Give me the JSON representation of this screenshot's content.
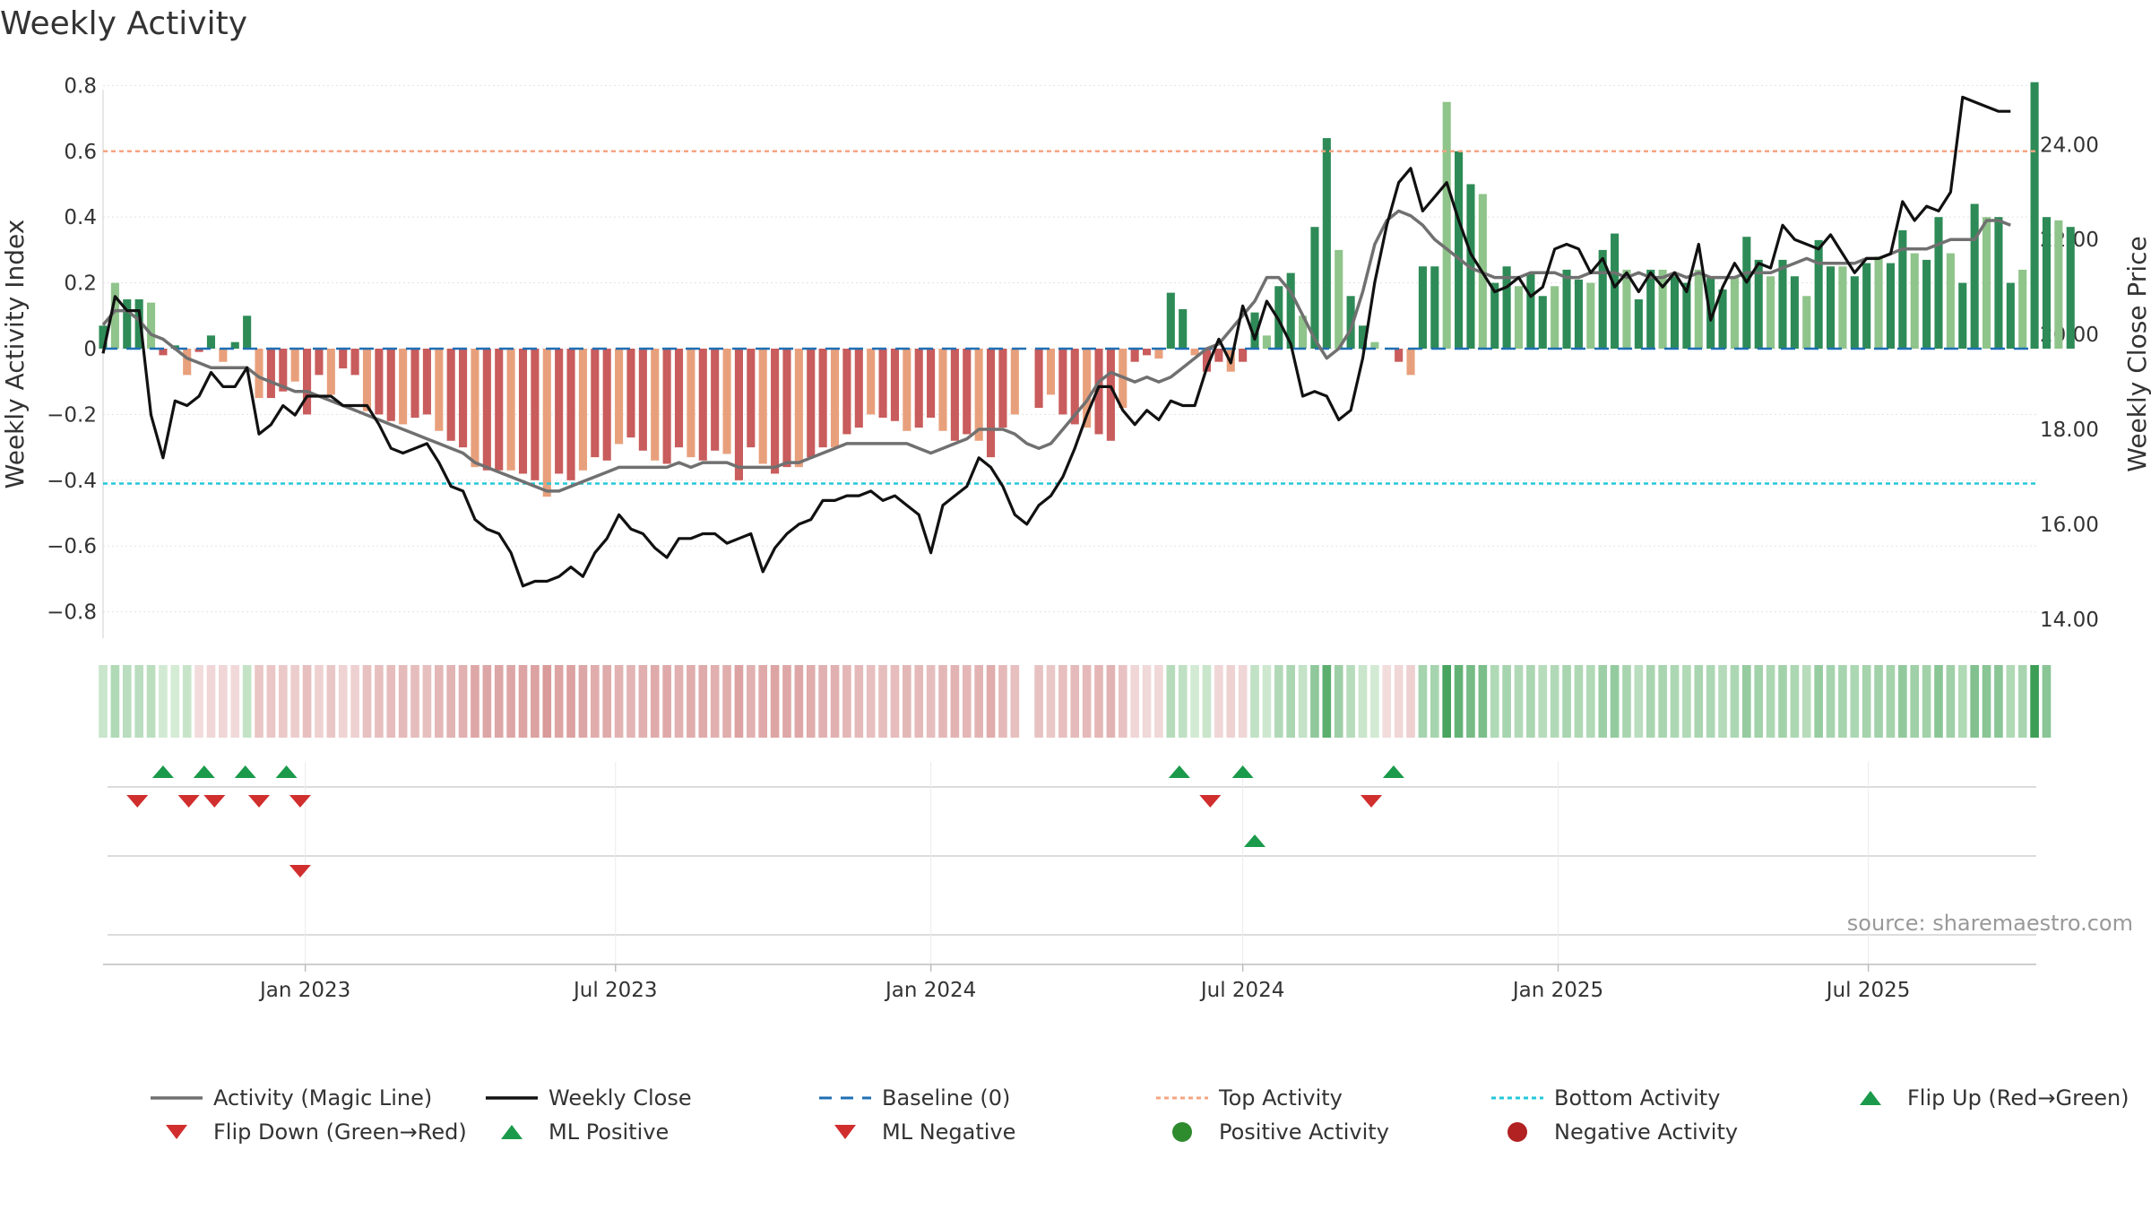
{
  "title": "Weekly Activity",
  "source": "source: sharemaestro.com",
  "colors": {
    "strong_pos": "#2e8b57",
    "light_pos": "#8fc48a",
    "strong_neg": "#c95c5c",
    "light_neg": "#e8a07c",
    "magic": "#707070",
    "close": "#111111",
    "baseline": "#1f6fb4",
    "top": "#f4a582",
    "bottom": "#22c8d8",
    "flip_up": "#1a9a4a",
    "flip_down": "#d12e2e",
    "pos_dot": "#2e8b2e",
    "neg_dot": "#b22222"
  },
  "chart_data": {
    "type": "bar+line",
    "title": "Weekly Activity",
    "ylabel": "Weekly Activity Index",
    "y2label": "Weekly Close Price",
    "ylim": [
      -0.88,
      0.88
    ],
    "y2lim": [
      13.6,
      25.8
    ],
    "xlim": [
      "2022-09-05",
      "2025-10-07"
    ],
    "yticks": [
      {
        "v": 0.8,
        "label": "0.8"
      },
      {
        "v": 0.6,
        "label": "0.6"
      },
      {
        "v": 0.4,
        "label": "0.4"
      },
      {
        "v": 0.2,
        "label": "0.2"
      },
      {
        "v": 0,
        "label": "0"
      },
      {
        "v": -0.2,
        "label": "−0.2"
      },
      {
        "v": -0.4,
        "label": "−0.4"
      },
      {
        "v": -0.6,
        "label": "−0.6"
      },
      {
        "v": -0.8,
        "label": "−0.8"
      }
    ],
    "y2ticks": [
      {
        "v": 24,
        "label": "24.00"
      },
      {
        "v": 22,
        "label": "22.00"
      },
      {
        "v": 20,
        "label": "20.00"
      },
      {
        "v": 18,
        "label": "18.00"
      },
      {
        "v": 16,
        "label": "16.00"
      },
      {
        "v": 14,
        "label": "14.00"
      }
    ],
    "xticks": [
      {
        "date": "2023-01-01",
        "label": "Jan 2023"
      },
      {
        "date": "2023-07-01",
        "label": "Jul 2023"
      },
      {
        "date": "2024-01-01",
        "label": "Jan 2024"
      },
      {
        "date": "2024-07-01",
        "label": "Jul 2024"
      },
      {
        "date": "2025-01-01",
        "label": "Jan 2025"
      },
      {
        "date": "2025-07-01",
        "label": "Jul 2025"
      }
    ],
    "top_activity": 0.6,
    "bottom_activity": -0.41,
    "start_date": "2022-09-05",
    "week_step_days": 7,
    "activity": [
      0.07,
      0.2,
      0.15,
      0.15,
      0.14,
      -0.02,
      0.01,
      -0.08,
      -0.01,
      0.04,
      -0.04,
      0.02,
      0.1,
      -0.15,
      -0.15,
      -0.13,
      -0.1,
      -0.2,
      -0.08,
      -0.14,
      -0.06,
      -0.08,
      -0.19,
      -0.2,
      -0.22,
      -0.23,
      -0.21,
      -0.2,
      -0.25,
      -0.28,
      -0.3,
      -0.36,
      -0.37,
      -0.37,
      -0.37,
      -0.38,
      -0.4,
      -0.45,
      -0.38,
      -0.4,
      -0.37,
      -0.33,
      -0.34,
      -0.29,
      -0.27,
      -0.31,
      -0.34,
      -0.35,
      -0.3,
      -0.33,
      -0.34,
      -0.31,
      -0.32,
      -0.4,
      -0.3,
      -0.35,
      -0.38,
      -0.36,
      -0.36,
      -0.33,
      -0.3,
      -0.3,
      -0.26,
      -0.24,
      -0.2,
      -0.21,
      -0.22,
      -0.25,
      -0.24,
      -0.21,
      -0.25,
      -0.28,
      -0.26,
      -0.28,
      -0.33,
      -0.24,
      -0.2,
      0,
      -0.18,
      -0.14,
      -0.2,
      -0.23,
      -0.24,
      -0.26,
      -0.28,
      -0.18,
      -0.04,
      -0.02,
      -0.03,
      0.17,
      0.12,
      -0.02,
      -0.07,
      -0.04,
      -0.07,
      -0.04,
      0.11,
      0.04,
      0.19,
      0.23,
      0.1,
      0.37,
      0.64,
      0.3,
      0.16,
      0.07,
      0.02,
      0,
      -0.04,
      -0.08,
      0.25,
      0.25,
      0.75,
      0.6,
      0.5,
      0.47,
      0.2,
      0.25,
      0.19,
      0.23,
      0.16,
      0.19,
      0.24,
      0.21,
      0.2,
      0.3,
      0.35,
      0.24,
      0.15,
      0.24,
      0.24,
      0.22,
      0.2,
      0.24,
      0.22,
      0.18,
      0.22,
      0.34,
      0.27,
      0.22,
      0.27,
      0.22,
      0.16,
      0.33,
      0.25,
      0.25,
      0.22,
      0.26,
      0.28,
      0.26,
      0.36,
      0.29,
      0.27,
      0.4,
      0.29,
      0.2,
      0.44,
      0.4,
      0.4,
      0.2,
      0.24,
      0.81,
      0.4,
      0.39,
      0.37
    ],
    "weekly_close": [
      19.6,
      20.8,
      20.5,
      20.5,
      18.3,
      17.4,
      18.6,
      18.5,
      18.7,
      19.2,
      18.9,
      18.9,
      19.3,
      17.9,
      18.1,
      18.5,
      18.3,
      18.7,
      18.7,
      18.7,
      18.5,
      18.5,
      18.5,
      18.1,
      17.6,
      17.5,
      17.6,
      17.7,
      17.3,
      16.8,
      16.7,
      16.1,
      15.9,
      15.8,
      15.4,
      14.7,
      14.8,
      14.8,
      14.9,
      15.1,
      14.9,
      15.4,
      15.7,
      16.2,
      15.9,
      15.8,
      15.5,
      15.3,
      15.7,
      15.7,
      15.8,
      15.8,
      15.6,
      15.7,
      15.8,
      15.0,
      15.5,
      15.8,
      16.0,
      16.1,
      16.5,
      16.5,
      16.6,
      16.6,
      16.7,
      16.5,
      16.6,
      16.4,
      16.2,
      15.4,
      16.4,
      16.6,
      16.8,
      17.4,
      17.2,
      16.8,
      16.2,
      16.0,
      16.4,
      16.6,
      17.0,
      17.6,
      18.3,
      18.9,
      18.9,
      18.4,
      18.1,
      18.4,
      18.2,
      18.6,
      18.5,
      18.5,
      19.3,
      19.9,
      19.4,
      20.6,
      19.9,
      20.7,
      20.3,
      19.8,
      18.7,
      18.8,
      18.7,
      18.2,
      18.4,
      19.5,
      21.1,
      22.3,
      23.2,
      23.5,
      22.6,
      22.9,
      23.2,
      22.4,
      21.7,
      21.3,
      20.9,
      21.0,
      21.2,
      20.8,
      21.0,
      21.8,
      21.9,
      21.8,
      21.3,
      21.6,
      21.0,
      21.3,
      20.9,
      21.3,
      21.0,
      21.3,
      20.9,
      21.9,
      20.3,
      21.0,
      21.5,
      21.1,
      21.5,
      21.4,
      22.3,
      22.0,
      21.9,
      21.8,
      22.1,
      21.7,
      21.3,
      21.6,
      21.6,
      21.7,
      22.8,
      22.4,
      22.7,
      22.6,
      23.0,
      25.0,
      24.9,
      24.8,
      24.7,
      24.7
    ],
    "magic_line": [
      20.2,
      20.5,
      20.5,
      20.3,
      20.0,
      19.9,
      19.7,
      19.5,
      19.4,
      19.3,
      19.3,
      19.3,
      19.3,
      19.1,
      19.0,
      18.9,
      18.8,
      18.8,
      18.7,
      18.6,
      18.5,
      18.4,
      18.3,
      18.2,
      18.1,
      18.0,
      17.9,
      17.8,
      17.7,
      17.6,
      17.5,
      17.3,
      17.2,
      17.1,
      17.0,
      16.9,
      16.8,
      16.7,
      16.7,
      16.8,
      16.9,
      17.0,
      17.1,
      17.2,
      17.2,
      17.2,
      17.2,
      17.2,
      17.3,
      17.2,
      17.3,
      17.3,
      17.3,
      17.2,
      17.2,
      17.2,
      17.2,
      17.3,
      17.3,
      17.4,
      17.5,
      17.6,
      17.7,
      17.7,
      17.7,
      17.7,
      17.7,
      17.7,
      17.6,
      17.5,
      17.6,
      17.7,
      17.8,
      18.0,
      18.0,
      18.0,
      17.9,
      17.7,
      17.6,
      17.7,
      18.0,
      18.3,
      18.6,
      19.0,
      19.2,
      19.1,
      19.0,
      19.1,
      19.0,
      19.1,
      19.3,
      19.5,
      19.7,
      19.8,
      20.1,
      20.4,
      20.7,
      21.2,
      21.2,
      20.9,
      20.4,
      19.9,
      19.5,
      19.7,
      20.1,
      20.9,
      21.9,
      22.4,
      22.6,
      22.5,
      22.3,
      22.0,
      21.8,
      21.6,
      21.4,
      21.3,
      21.2,
      21.2,
      21.2,
      21.3,
      21.3,
      21.3,
      21.2,
      21.2,
      21.3,
      21.3,
      21.3,
      21.2,
      21.3,
      21.2,
      21.2,
      21.3,
      21.2,
      21.3,
      21.2,
      21.2,
      21.2,
      21.3,
      21.3,
      21.3,
      21.4,
      21.5,
      21.6,
      21.5,
      21.5,
      21.5,
      21.5,
      21.6,
      21.6,
      21.7,
      21.8,
      21.8,
      21.8,
      21.9,
      22.0,
      22.0,
      22.0,
      22.4,
      22.4,
      22.3
    ],
    "heat_strip": [
      {
        "s": 0,
        "e": 7,
        "mode": "pos"
      },
      {
        "s": 8,
        "e": 11,
        "mode": "neg"
      },
      {
        "s": 12,
        "e": 12,
        "mode": "pos"
      },
      {
        "s": 13,
        "e": 76,
        "mode": "neg"
      },
      {
        "s": 78,
        "e": 88,
        "mode": "neg"
      },
      {
        "s": 89,
        "e": 92,
        "mode": "pos"
      },
      {
        "s": 93,
        "e": 95,
        "mode": "neg"
      },
      {
        "s": 96,
        "e": 106,
        "mode": "pos"
      },
      {
        "s": 107,
        "e": 109,
        "mode": "neg"
      },
      {
        "s": 110,
        "e": 162,
        "mode": "pos"
      }
    ],
    "flip_up": [
      "2022-10-10",
      "2022-11-03",
      "2022-11-27",
      "2022-12-21",
      "2024-05-25",
      "2024-07-01",
      "2024-09-27"
    ],
    "flip_down": [
      "2022-09-25",
      "2022-10-25",
      "2022-11-09",
      "2022-12-05",
      "2022-12-29",
      "2024-06-12",
      "2024-09-14"
    ],
    "ml_positive": [
      "2024-07-08"
    ],
    "ml_negative": [
      "2022-12-29"
    ]
  },
  "legend": [
    {
      "label": "Activity (Magic Line)",
      "kind": "line",
      "color": "#707070"
    },
    {
      "label": "Weekly Close",
      "kind": "line",
      "color": "#111111"
    },
    {
      "label": "Baseline (0)",
      "kind": "dash",
      "color": "#1f6fb4"
    },
    {
      "label": "Top Activity",
      "kind": "dot",
      "color": "#f4a582"
    },
    {
      "label": "Bottom Activity",
      "kind": "dot",
      "color": "#22c8d8"
    },
    {
      "label": "Flip Up (Red→Green)",
      "kind": "tri-up",
      "color": "#1a9a4a"
    },
    {
      "label": "Flip Down (Green→Red)",
      "kind": "tri-down",
      "color": "#d12e2e"
    },
    {
      "label": "ML Positive",
      "kind": "tri-up",
      "color": "#1a9a4a"
    },
    {
      "label": "ML Negative",
      "kind": "tri-down",
      "color": "#d12e2e"
    },
    {
      "label": "Positive Activity",
      "kind": "circle",
      "color": "#2e8b2e"
    },
    {
      "label": "Negative Activity",
      "kind": "circle",
      "color": "#b22222"
    }
  ]
}
